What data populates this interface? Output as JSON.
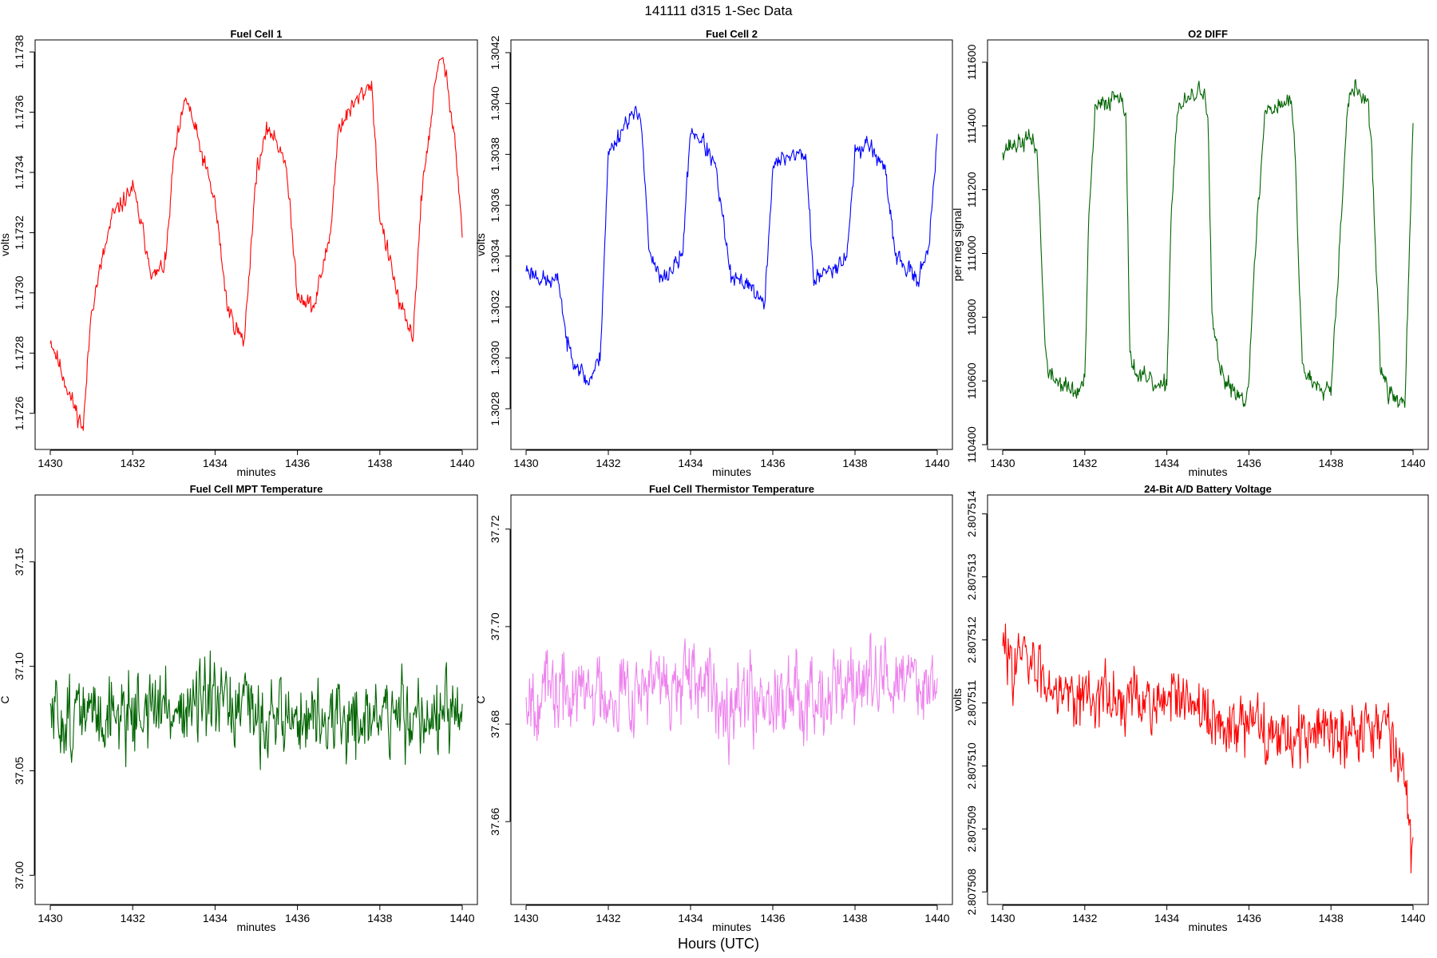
{
  "figure": {
    "title": "141111   d315   1-Sec Data",
    "xlabel": "Hours (UTC)"
  },
  "chart_data": [
    {
      "type": "line",
      "title": "Fuel Cell 1",
      "xlabel": "minutes",
      "ylabel": "volts",
      "color": "#ff0000",
      "xlim": [
        1430,
        1440
      ],
      "ylim": [
        1.17248,
        1.17384
      ],
      "xticks": [
        1430,
        1432,
        1434,
        1436,
        1438,
        1440
      ],
      "xtick_labels": [
        "1430",
        "1432",
        "1434",
        "1436",
        "1438",
        "1440"
      ],
      "yticks": [
        1.1726,
        1.1728,
        1.173,
        1.1732,
        1.1734,
        1.1736,
        1.1738
      ],
      "ytick_labels": [
        "1.1726",
        "1.1728",
        "1.1730",
        "1.1732",
        "1.1734",
        "1.1736",
        "1.1738"
      ],
      "x": [
        1430.0,
        1430.5,
        1430.8,
        1431.0,
        1431.5,
        1432.0,
        1432.5,
        1432.8,
        1433.0,
        1433.3,
        1433.5,
        1434.0,
        1434.3,
        1434.7,
        1435.0,
        1435.3,
        1435.7,
        1436.0,
        1436.4,
        1436.8,
        1437.0,
        1437.5,
        1437.8,
        1438.0,
        1438.5,
        1438.8,
        1439.0,
        1439.3,
        1439.5,
        1439.8,
        1440.0
      ],
      "y": [
        1.17285,
        1.17265,
        1.17255,
        1.17295,
        1.17325,
        1.17335,
        1.17305,
        1.1731,
        1.17345,
        1.17365,
        1.17355,
        1.1733,
        1.17295,
        1.17283,
        1.1734,
        1.17355,
        1.17345,
        1.173,
        1.17295,
        1.1732,
        1.17355,
        1.17365,
        1.1737,
        1.17325,
        1.17295,
        1.17285,
        1.1733,
        1.17365,
        1.1738,
        1.17355,
        1.1732
      ],
      "noise": 3.5e-05,
      "seed": 11
    },
    {
      "type": "line",
      "title": "Fuel Cell 2",
      "xlabel": "minutes",
      "ylabel": "volts",
      "color": "#0000ff",
      "xlim": [
        1430,
        1440
      ],
      "ylim": [
        1.30264,
        1.30425
      ],
      "xticks": [
        1430,
        1432,
        1434,
        1436,
        1438,
        1440
      ],
      "xtick_labels": [
        "1430",
        "1432",
        "1434",
        "1436",
        "1438",
        "1440"
      ],
      "yticks": [
        1.3028,
        1.303,
        1.3032,
        1.3034,
        1.3036,
        1.3038,
        1.304,
        1.3042
      ],
      "ytick_labels": [
        "1.3028",
        "1.3030",
        "1.3032",
        "1.3034",
        "1.3036",
        "1.3038",
        "1.3040",
        "1.3042"
      ],
      "x": [
        1430.0,
        1430.5,
        1430.8,
        1431.0,
        1431.5,
        1431.8,
        1432.0,
        1432.5,
        1432.8,
        1433.0,
        1433.3,
        1433.8,
        1434.0,
        1434.3,
        1434.6,
        1435.0,
        1435.4,
        1435.8,
        1436.0,
        1436.4,
        1436.8,
        1437.0,
        1437.4,
        1437.8,
        1438.0,
        1438.3,
        1438.7,
        1439.0,
        1439.5,
        1439.8,
        1440.0
      ],
      "y": [
        1.30335,
        1.3033,
        1.3033,
        1.30305,
        1.3029,
        1.303,
        1.3038,
        1.30395,
        1.30395,
        1.3034,
        1.3033,
        1.3034,
        1.3039,
        1.30385,
        1.30375,
        1.3033,
        1.3033,
        1.3032,
        1.30375,
        1.3038,
        1.3038,
        1.3033,
        1.30335,
        1.3034,
        1.3038,
        1.30385,
        1.30375,
        1.3034,
        1.3033,
        1.30345,
        1.30385
      ],
      "noise": 4e-05,
      "seed": 23
    },
    {
      "type": "line",
      "title": "O2 DIFF",
      "xlabel": "minutes",
      "ylabel": "per meg signal",
      "color": "#006400",
      "xlim": [
        1430,
        1440
      ],
      "ylim": [
        110385,
        111670
      ],
      "xticks": [
        1430,
        1432,
        1434,
        1436,
        1438,
        1440
      ],
      "xtick_labels": [
        "1430",
        "1432",
        "1434",
        "1436",
        "1438",
        "1440"
      ],
      "yticks": [
        110400,
        110600,
        110800,
        111000,
        111200,
        111400,
        111600
      ],
      "ytick_labels": [
        "110400",
        "110600",
        "110800",
        "111000",
        "111200",
        "111400",
        "111600"
      ],
      "x": [
        1430.0,
        1430.75,
        1430.85,
        1431.0,
        1431.1,
        1431.8,
        1432.0,
        1432.1,
        1432.25,
        1432.9,
        1433.0,
        1433.1,
        1433.25,
        1433.9,
        1434.0,
        1434.1,
        1434.25,
        1434.9,
        1435.0,
        1435.1,
        1435.3,
        1435.9,
        1436.0,
        1436.2,
        1436.4,
        1437.0,
        1437.1,
        1437.3,
        1437.5,
        1438.0,
        1438.2,
        1438.4,
        1438.6,
        1438.9,
        1439.0,
        1439.2,
        1439.4,
        1439.8,
        1439.9,
        1440.0
      ],
      "y": [
        111330,
        111360,
        111300,
        110800,
        110620,
        110560,
        110600,
        111100,
        111450,
        111510,
        111420,
        110700,
        110620,
        110570,
        110600,
        111100,
        111450,
        111520,
        111420,
        110800,
        110620,
        110540,
        110620,
        111100,
        111450,
        111480,
        111400,
        110650,
        110600,
        110580,
        111000,
        111470,
        111520,
        111470,
        111300,
        110650,
        110560,
        110530,
        110950,
        111400
      ],
      "noise": 35,
      "seed": 37
    },
    {
      "type": "line",
      "title": "Fuel Cell MPT Temperature",
      "xlabel": "minutes",
      "ylabel": "C",
      "color": "#006400",
      "xlim": [
        1430,
        1440
      ],
      "ylim": [
        36.986,
        37.182
      ],
      "xticks": [
        1430,
        1432,
        1434,
        1436,
        1438,
        1440
      ],
      "xtick_labels": [
        "1430",
        "1432",
        "1434",
        "1436",
        "1438",
        "1440"
      ],
      "yticks": [
        37.0,
        37.05,
        37.1,
        37.15
      ],
      "ytick_labels": [
        "37.00",
        "37.05",
        "37.10",
        "37.15"
      ],
      "x": [
        1430,
        1431,
        1432,
        1433,
        1434,
        1435,
        1436,
        1437,
        1438,
        1439,
        1440
      ],
      "y": [
        37.075,
        37.077,
        37.079,
        37.08,
        37.08,
        37.077,
        37.075,
        37.073,
        37.076,
        37.078,
        37.072
      ],
      "noise": 0.022,
      "seed": 51
    },
    {
      "type": "line",
      "title": "Fuel Cell Thermistor Temperature",
      "xlabel": "minutes",
      "ylabel": "C",
      "color": "#ee82ee",
      "xlim": [
        1430,
        1440
      ],
      "ylim": [
        37.643,
        37.727
      ],
      "xticks": [
        1430,
        1432,
        1434,
        1436,
        1438,
        1440
      ],
      "xtick_labels": [
        "1430",
        "1432",
        "1434",
        "1436",
        "1438",
        "1440"
      ],
      "yticks": [
        37.66,
        37.68,
        37.7,
        37.72
      ],
      "ytick_labels": [
        "37.66",
        "37.68",
        "37.70",
        "37.72"
      ],
      "x": [
        1430,
        1431,
        1432,
        1433,
        1434,
        1435,
        1436,
        1437,
        1438,
        1439,
        1440
      ],
      "y": [
        37.687,
        37.686,
        37.687,
        37.688,
        37.687,
        37.686,
        37.686,
        37.687,
        37.688,
        37.689,
        37.689
      ],
      "noise": 0.0095,
      "seed": 67
    },
    {
      "type": "line",
      "title": "24-Bit A/D Battery Voltage",
      "xlabel": "minutes",
      "ylabel": "volts",
      "color": "#ff0000",
      "xlim": [
        1430,
        1440
      ],
      "ylim": [
        2.8075078,
        2.8075143
      ],
      "xticks": [
        1430,
        1432,
        1434,
        1436,
        1438,
        1440
      ],
      "xtick_labels": [
        "1430",
        "1432",
        "1434",
        "1436",
        "1438",
        "1440"
      ],
      "yticks": [
        2.807508,
        2.807509,
        2.80751,
        2.807511,
        2.807512,
        2.807513,
        2.807514
      ],
      "ytick_labels": [
        "2.807508",
        "2.807509",
        "2.807510",
        "2.807511",
        "2.807512",
        "2.807513",
        "2.807514"
      ],
      "x": [
        1430.0,
        1430.5,
        1431.0,
        1431.5,
        1432.0,
        1432.5,
        1433.0,
        1433.5,
        1434.0,
        1434.5,
        1435.0,
        1435.5,
        1436.0,
        1436.5,
        1437.0,
        1437.5,
        1438.0,
        1438.5,
        1439.0,
        1439.5,
        1439.8,
        1440.0
      ],
      "y": [
        2.8075118,
        2.8075117,
        2.8075114,
        2.8075113,
        2.8075111,
        2.8075111,
        2.807511,
        2.807511,
        2.8075111,
        2.8075109,
        2.8075108,
        2.8075106,
        2.8075106,
        2.8075106,
        2.8075105,
        2.8075105,
        2.8075106,
        2.8075106,
        2.8075107,
        2.8075105,
        2.8075098,
        2.8075084
      ],
      "noise": 5.5e-07,
      "seed": 83
    }
  ]
}
